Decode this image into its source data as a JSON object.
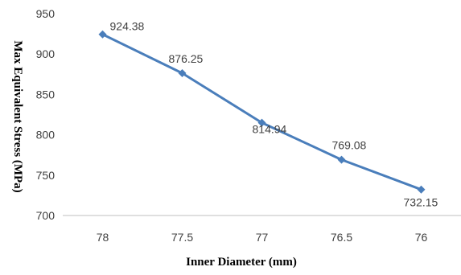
{
  "chart_data": {
    "type": "line",
    "xlabel": "Inner Diameter (mm)",
    "ylabel": "Max Equivalent Stress (MPa)",
    "categories": [
      "78",
      "77.5",
      "77",
      "76.5",
      "76"
    ],
    "values": [
      924.38,
      876.25,
      814.94,
      769.08,
      732.15
    ],
    "data_labels": [
      "924.38",
      "876.25",
      "814.94",
      "769.08",
      "732.15"
    ],
    "ylim": [
      700,
      950
    ],
    "yticks": [
      "700",
      "750",
      "800",
      "850",
      "900",
      "950"
    ],
    "grid": false,
    "legend": "none",
    "marker": "diamond",
    "series_color": "#4a7ebb"
  }
}
